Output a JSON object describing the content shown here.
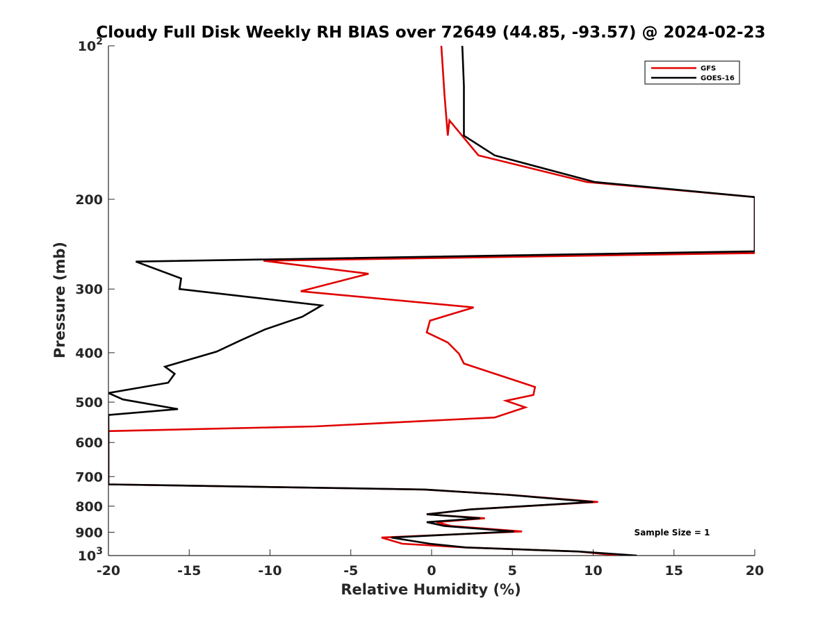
{
  "chart_data": {
    "type": "line",
    "title": "Cloudy Full Disk Weekly RH BIAS over 72649 (44.85, -93.57) @ 2024-02-23",
    "xlabel": "Relative Humidity (%)",
    "ylabel": "Pressure (mb)",
    "xlim": [
      -20,
      20
    ],
    "ylim": [
      100,
      1000
    ],
    "y_scale": "log",
    "y_reversed": true,
    "x_ticks": [
      -20,
      -15,
      -10,
      -5,
      0,
      5,
      10,
      15,
      20
    ],
    "x_tick_labels": [
      "-20",
      "-15",
      "-10",
      "-5",
      "0",
      "5",
      "10",
      "15",
      "20"
    ],
    "y_ticks": [
      100,
      200,
      300,
      400,
      500,
      600,
      700,
      800,
      900,
      1000
    ],
    "y_tick_labels": [
      {
        "base": "10",
        "exp": "2"
      },
      {
        "base": "200",
        "exp": ""
      },
      {
        "base": "300",
        "exp": ""
      },
      {
        "base": "400",
        "exp": ""
      },
      {
        "base": "500",
        "exp": ""
      },
      {
        "base": "600",
        "exp": ""
      },
      {
        "base": "700",
        "exp": ""
      },
      {
        "base": "800",
        "exp": ""
      },
      {
        "base": "900",
        "exp": ""
      },
      {
        "base": "10",
        "exp": "3"
      }
    ],
    "grid": false,
    "legend_position": "top-right",
    "annotation": "Sample Size = 1",
    "series": [
      {
        "name": "GFS",
        "color": "#e00000",
        "points": [
          [
            0.6,
            100
          ],
          [
            0.8,
            125
          ],
          [
            1.0,
            150
          ],
          [
            1.1,
            140
          ],
          [
            2.9,
            164
          ],
          [
            9.6,
            185
          ],
          [
            20,
            198
          ],
          [
            20,
            255
          ],
          [
            -10.4,
            264
          ],
          [
            -3.9,
            280
          ],
          [
            -8.1,
            303
          ],
          [
            2.6,
            326
          ],
          [
            -0.1,
            346
          ],
          [
            -0.3,
            365
          ],
          [
            1.0,
            382
          ],
          [
            1.7,
            402
          ],
          [
            2.0,
            420
          ],
          [
            6.4,
            467
          ],
          [
            6.3,
            484
          ],
          [
            4.6,
            497
          ],
          [
            5.8,
            512
          ],
          [
            3.9,
            536
          ],
          [
            -7.2,
            558
          ],
          [
            -20,
            570
          ],
          [
            -20,
            725
          ],
          [
            -0.5,
            742
          ],
          [
            4.8,
            760
          ],
          [
            10.3,
            785
          ],
          [
            2.4,
            812
          ],
          [
            -0.3,
            830
          ],
          [
            3.3,
            845
          ],
          [
            0.3,
            860
          ],
          [
            1.2,
            875
          ],
          [
            5.6,
            897
          ],
          [
            -3.1,
            922
          ],
          [
            -1.8,
            948
          ],
          [
            2.1,
            964
          ],
          [
            9.1,
            982
          ],
          [
            11.6,
            1000
          ]
        ]
      },
      {
        "name": "GOES-16",
        "color": "#000000",
        "points": [
          [
            1.9,
            100
          ],
          [
            2.0,
            120
          ],
          [
            2.0,
            150
          ],
          [
            3.9,
            164
          ],
          [
            10.1,
            185
          ],
          [
            20,
            198
          ],
          [
            20,
            253
          ],
          [
            -18.3,
            265
          ],
          [
            -15.5,
            286
          ],
          [
            -15.6,
            300
          ],
          [
            -6.8,
            323
          ],
          [
            -8.0,
            340
          ],
          [
            -10.3,
            360
          ],
          [
            -11.8,
            378
          ],
          [
            -13.3,
            398
          ],
          [
            -16.5,
            426
          ],
          [
            -15.9,
            440
          ],
          [
            -16.3,
            458
          ],
          [
            -20,
            480
          ],
          [
            -19.1,
            494
          ],
          [
            -15.7,
            516
          ],
          [
            -20,
            530
          ],
          [
            -20,
            725
          ],
          [
            -0.4,
            742
          ],
          [
            4.7,
            760
          ],
          [
            10.0,
            785
          ],
          [
            2.4,
            812
          ],
          [
            -0.3,
            830
          ],
          [
            3.0,
            845
          ],
          [
            -0.3,
            860
          ],
          [
            0.8,
            875
          ],
          [
            5.1,
            897
          ],
          [
            -2.5,
            922
          ],
          [
            -0.1,
            948
          ],
          [
            2.1,
            964
          ],
          [
            9.1,
            982
          ],
          [
            12.7,
            1000
          ]
        ]
      }
    ]
  }
}
